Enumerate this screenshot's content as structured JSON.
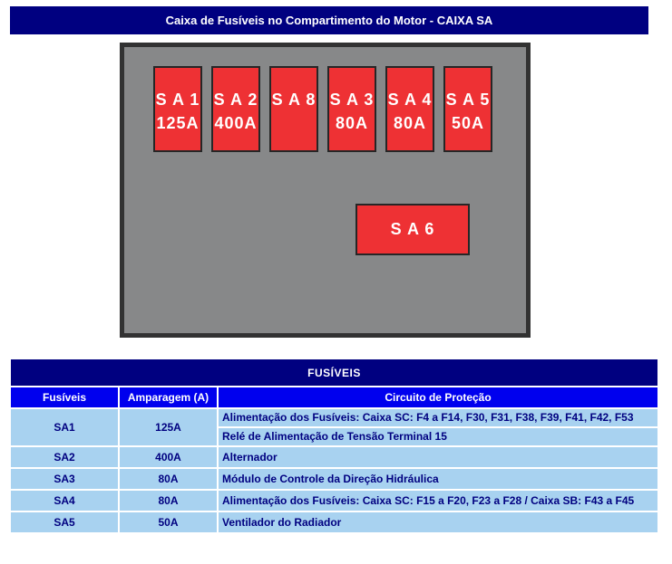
{
  "title": "Caixa de Fusíveis no Compartimento do Motor - CAIXA SA",
  "diagram": {
    "fuses_row": [
      {
        "name": "S A 1",
        "amp": "125A"
      },
      {
        "name": "S A 2",
        "amp": "400A"
      },
      {
        "name": "S A 8",
        "amp": ""
      },
      {
        "name": "S A 3",
        "amp": "80A"
      },
      {
        "name": "S A 4",
        "amp": "80A"
      },
      {
        "name": "S A 5",
        "amp": "50A"
      }
    ],
    "fuse_single": {
      "name": "S A 6"
    }
  },
  "table": {
    "title": "FUSÍVEIS",
    "columns": [
      "Fusíveis",
      "Amparagem (A)",
      "Circuito de Proteção"
    ],
    "rows": [
      {
        "fuse": "SA1",
        "amp": "125A",
        "circuits": [
          "Alimentação dos Fusíveis: Caixa SC: F4 a F14, F30, F31, F38, F39, F41, F42, F53",
          "Relé de Alimentação de Tensão Terminal 15"
        ]
      },
      {
        "fuse": "SA2",
        "amp": "400A",
        "circuits": [
          "Alternador"
        ]
      },
      {
        "fuse": "SA3",
        "amp": "80A",
        "circuits": [
          "Módulo de Controle da Direção Hidráulica"
        ]
      },
      {
        "fuse": "SA4",
        "amp": "80A",
        "circuits": [
          "Alimentação dos Fusíveis: Caixa SC: F15 a F20, F23 a F28 / Caixa SB: F43 a F45"
        ]
      },
      {
        "fuse": "SA5",
        "amp": "50A",
        "circuits": [
          "Ventilador do Radiador"
        ]
      }
    ]
  },
  "colors": {
    "navy": "#000080",
    "header_blue": "#0000EE",
    "row_blue": "#A8D2F0",
    "fuse_red": "#EE3134",
    "box_gray": "#878889"
  }
}
